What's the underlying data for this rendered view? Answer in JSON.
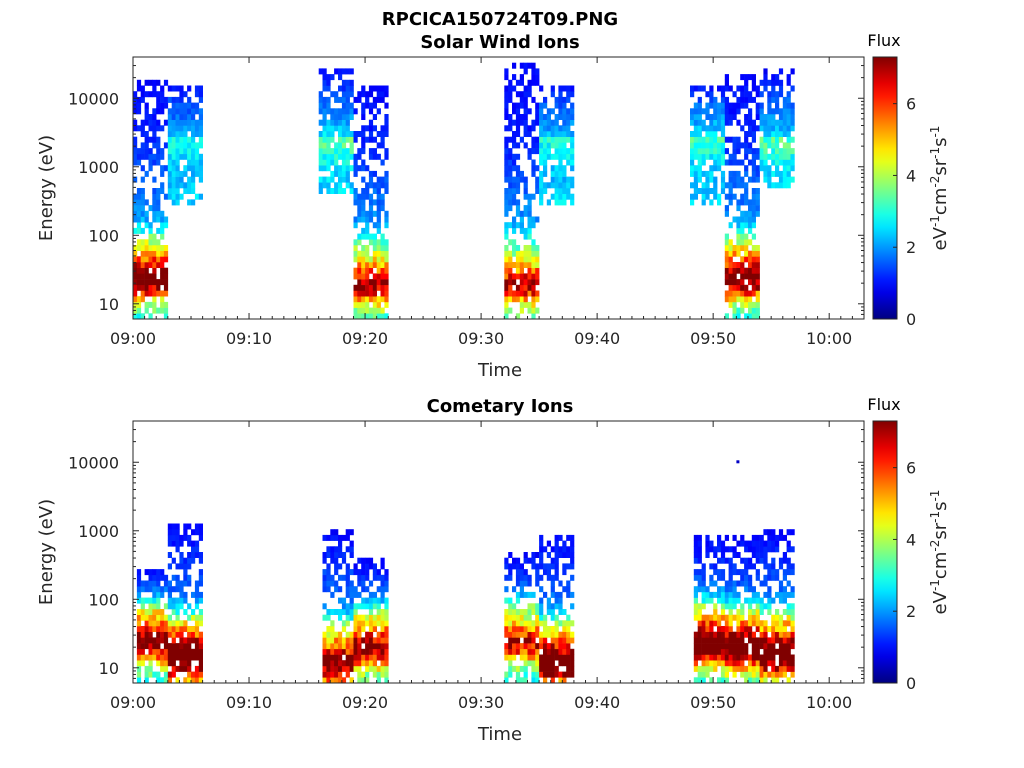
{
  "figure": {
    "title": "RPCICA150724T09.PNG",
    "colormap": "jet"
  },
  "chart_data": [
    {
      "type": "heatmap",
      "title": "Solar Wind Ions",
      "xlabel": "Time",
      "ylabel": "Energy (eV)",
      "yscale": "log",
      "ylim": [
        6,
        40000
      ],
      "xlim": [
        "09:00",
        "10:03"
      ],
      "xticks": [
        "09:00",
        "09:10",
        "09:20",
        "09:30",
        "09:40",
        "09:50",
        "10:00"
      ],
      "yticks": [
        "10",
        "100",
        "1000",
        "10000"
      ],
      "colorbar": {
        "label": "Flux",
        "units": "eV-1cm-2sr-1s-1",
        "range": [
          0,
          7.3
        ],
        "ticks": [
          "0",
          "2",
          "4",
          "6"
        ]
      },
      "bursts": [
        {
          "start": "09:00:00",
          "end": "09:03:00",
          "emin": 6,
          "emax": 20000,
          "flux_peak": 6.5,
          "peak_energy": 30
        },
        {
          "start": "09:03:00",
          "end": "09:06:00",
          "emin": 300,
          "emax": 15000,
          "flux_peak": 1.2,
          "peak_energy": 3000
        },
        {
          "start": "09:16:00",
          "end": "09:19:00",
          "emin": 400,
          "emax": 30000,
          "flux_peak": 1.6,
          "peak_energy": 3000
        },
        {
          "start": "09:19:00",
          "end": "09:22:00",
          "emin": 6,
          "emax": 15000,
          "flux_peak": 5.5,
          "peak_energy": 25
        },
        {
          "start": "09:32:00",
          "end": "09:35:00",
          "emin": 6,
          "emax": 35000,
          "flux_peak": 5.2,
          "peak_energy": 25
        },
        {
          "start": "09:35:00",
          "end": "09:38:00",
          "emin": 300,
          "emax": 15000,
          "flux_peak": 1.3,
          "peak_energy": 3000
        },
        {
          "start": "09:48:00",
          "end": "09:51:00",
          "emin": 300,
          "emax": 15000,
          "flux_peak": 1.6,
          "peak_energy": 3000
        },
        {
          "start": "09:51:00",
          "end": "09:54:00",
          "emin": 6,
          "emax": 22000,
          "flux_peak": 6.2,
          "peak_energy": 30
        },
        {
          "start": "09:54:00",
          "end": "09:57:00",
          "emin": 500,
          "emax": 25000,
          "flux_peak": 1.5,
          "peak_energy": 3000
        }
      ]
    },
    {
      "type": "heatmap",
      "title": "Cometary Ions",
      "xlabel": "Time",
      "ylabel": "Energy (eV)",
      "yscale": "log",
      "ylim": [
        6,
        40000
      ],
      "xlim": [
        "09:00",
        "10:03"
      ],
      "xticks": [
        "09:00",
        "09:10",
        "09:20",
        "09:30",
        "09:40",
        "09:50",
        "10:00"
      ],
      "yticks": [
        "10",
        "100",
        "1000",
        "10000"
      ],
      "colorbar": {
        "label": "Flux",
        "units": "eV-1cm-2sr-1s-1",
        "range": [
          0,
          7.3
        ],
        "ticks": [
          "0",
          "2",
          "4",
          "6"
        ]
      },
      "bursts": [
        {
          "start": "09:00:20",
          "end": "09:03:00",
          "emin": 6,
          "emax": 300,
          "flux_peak": 6.3,
          "peak_energy": 30
        },
        {
          "start": "09:03:00",
          "end": "09:06:00",
          "emin": 6,
          "emax": 1200,
          "flux_peak": 7.2,
          "peak_energy": 18
        },
        {
          "start": "09:16:20",
          "end": "09:19:00",
          "emin": 6,
          "emax": 1000,
          "flux_peak": 6.0,
          "peak_energy": 15
        },
        {
          "start": "09:19:00",
          "end": "09:22:00",
          "emin": 6,
          "emax": 400,
          "flux_peak": 5.8,
          "peak_energy": 25
        },
        {
          "start": "09:32:00",
          "end": "09:35:00",
          "emin": 6,
          "emax": 500,
          "flux_peak": 5.2,
          "peak_energy": 30
        },
        {
          "start": "09:35:00",
          "end": "09:38:00",
          "emin": 6,
          "emax": 900,
          "flux_peak": 6.8,
          "peak_energy": 15
        },
        {
          "start": "09:48:20",
          "end": "09:51:00",
          "emin": 6,
          "emax": 900,
          "flux_peak": 7.0,
          "peak_energy": 28
        },
        {
          "start": "09:51:00",
          "end": "09:54:00",
          "emin": 6,
          "emax": 800,
          "flux_peak": 6.8,
          "peak_energy": 25
        },
        {
          "start": "09:54:00",
          "end": "09:57:00",
          "emin": 6,
          "emax": 1000,
          "flux_peak": 6.9,
          "peak_energy": 20
        }
      ],
      "outliers": [
        {
          "time": "09:52:00",
          "energy": 10000,
          "flux": 0.5
        }
      ]
    }
  ]
}
